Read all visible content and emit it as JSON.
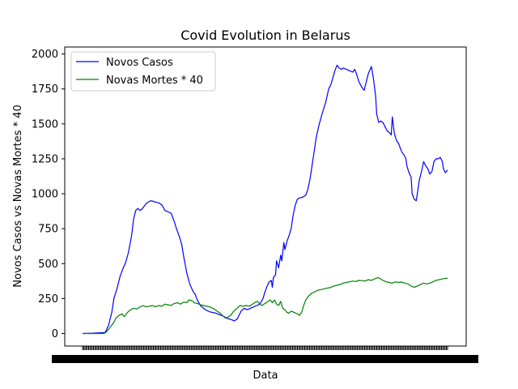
{
  "chart_data": {
    "type": "line",
    "title": "Covid Evolution in Belarus",
    "xlabel": "Data",
    "ylabel": "Novos Casos vs Novas Mortes * 40",
    "ylim": [
      -90,
      2050
    ],
    "yticks": [
      0,
      250,
      500,
      750,
      1000,
      1250,
      1500,
      1750,
      2000
    ],
    "x_tick_count": 300,
    "grid": false,
    "legend_position": "top-left",
    "series": [
      {
        "name": "Novos Casos",
        "color": "#0000ff",
        "points": [
          [
            0,
            0
          ],
          [
            10,
            2
          ],
          [
            17,
            5
          ],
          [
            20,
            5
          ],
          [
            22,
            10
          ],
          [
            25,
            60
          ],
          [
            28,
            150
          ],
          [
            30,
            250
          ],
          [
            33,
            320
          ],
          [
            36,
            410
          ],
          [
            39,
            470
          ],
          [
            41,
            500
          ],
          [
            44,
            580
          ],
          [
            47,
            700
          ],
          [
            49,
            820
          ],
          [
            51,
            880
          ],
          [
            53,
            895
          ],
          [
            55,
            880
          ],
          [
            57,
            890
          ],
          [
            59,
            910
          ],
          [
            61,
            930
          ],
          [
            64,
            945
          ],
          [
            66,
            950
          ],
          [
            68,
            945
          ],
          [
            70,
            940
          ],
          [
            73,
            935
          ],
          [
            76,
            920
          ],
          [
            79,
            880
          ],
          [
            82,
            870
          ],
          [
            85,
            860
          ],
          [
            88,
            800
          ],
          [
            90,
            750
          ],
          [
            93,
            690
          ],
          [
            95,
            640
          ],
          [
            97,
            550
          ],
          [
            100,
            430
          ],
          [
            103,
            350
          ],
          [
            106,
            300
          ],
          [
            108,
            280
          ],
          [
            110,
            240
          ],
          [
            113,
            200
          ],
          [
            116,
            180
          ],
          [
            119,
            165
          ],
          [
            122,
            155
          ],
          [
            125,
            150
          ],
          [
            128,
            145
          ],
          [
            131,
            135
          ],
          [
            133,
            130
          ],
          [
            136,
            120
          ],
          [
            138,
            110
          ],
          [
            140,
            105
          ],
          [
            142,
            100
          ],
          [
            144,
            95
          ],
          [
            145,
            90
          ],
          [
            148,
            100
          ],
          [
            150,
            130
          ],
          [
            152,
            160
          ],
          [
            155,
            180
          ],
          [
            158,
            170
          ],
          [
            161,
            180
          ],
          [
            164,
            190
          ],
          [
            167,
            200
          ],
          [
            170,
            210
          ],
          [
            173,
            250
          ],
          [
            175,
            300
          ],
          [
            177,
            340
          ],
          [
            179,
            370
          ],
          [
            181,
            380
          ],
          [
            182,
            330
          ],
          [
            183,
            400
          ],
          [
            185,
            420
          ],
          [
            186,
            520
          ],
          [
            188,
            470
          ],
          [
            190,
            560
          ],
          [
            191,
            520
          ],
          [
            193,
            650
          ],
          [
            194,
            600
          ],
          [
            196,
            660
          ],
          [
            198,
            700
          ],
          [
            200,
            750
          ],
          [
            202,
            850
          ],
          [
            204,
            920
          ],
          [
            206,
            960
          ],
          [
            208,
            970
          ],
          [
            211,
            975
          ],
          [
            214,
            990
          ],
          [
            216,
            1030
          ],
          [
            218,
            1100
          ],
          [
            220,
            1200
          ],
          [
            222,
            1300
          ],
          [
            224,
            1400
          ],
          [
            227,
            1500
          ],
          [
            230,
            1580
          ],
          [
            233,
            1650
          ],
          [
            236,
            1750
          ],
          [
            238,
            1780
          ],
          [
            240,
            1830
          ],
          [
            242,
            1880
          ],
          [
            244,
            1920
          ],
          [
            246,
            1900
          ],
          [
            248,
            1890
          ],
          [
            250,
            1900
          ],
          [
            253,
            1890
          ],
          [
            256,
            1880
          ],
          [
            259,
            1870
          ],
          [
            261,
            1890
          ],
          [
            263,
            1850
          ],
          [
            265,
            1800
          ],
          [
            268,
            1760
          ],
          [
            270,
            1740
          ],
          [
            272,
            1800
          ],
          [
            274,
            1860
          ],
          [
            277,
            1910
          ],
          [
            279,
            1820
          ],
          [
            281,
            1700
          ],
          [
            282,
            1570
          ],
          [
            284,
            1510
          ],
          [
            286,
            1520
          ],
          [
            288,
            1510
          ],
          [
            290,
            1480
          ],
          [
            292,
            1450
          ],
          [
            294,
            1440
          ],
          [
            296,
            1420
          ],
          [
            297,
            1550
          ],
          [
            299,
            1430
          ],
          [
            301,
            1380
          ],
          [
            303,
            1360
          ],
          [
            306,
            1300
          ],
          [
            308,
            1280
          ],
          [
            310,
            1250
          ],
          [
            311,
            1200
          ],
          [
            313,
            1150
          ],
          [
            315,
            1120
          ],
          [
            316,
            1000
          ],
          [
            318,
            960
          ],
          [
            320,
            950
          ],
          [
            321,
            1000
          ],
          [
            323,
            1100
          ],
          [
            325,
            1160
          ],
          [
            327,
            1230
          ],
          [
            329,
            1200
          ],
          [
            331,
            1180
          ],
          [
            333,
            1140
          ],
          [
            335,
            1160
          ],
          [
            337,
            1230
          ],
          [
            339,
            1250
          ],
          [
            341,
            1250
          ],
          [
            343,
            1260
          ],
          [
            345,
            1230
          ],
          [
            346,
            1180
          ],
          [
            348,
            1150
          ],
          [
            350,
            1170
          ]
        ]
      },
      {
        "name": "Novas Mortes * 40",
        "color": "#008000",
        "points": [
          [
            0,
            0
          ],
          [
            10,
            0
          ],
          [
            20,
            0
          ],
          [
            22,
            5
          ],
          [
            25,
            30
          ],
          [
            28,
            60
          ],
          [
            30,
            80
          ],
          [
            32,
            110
          ],
          [
            35,
            130
          ],
          [
            38,
            140
          ],
          [
            40,
            120
          ],
          [
            43,
            150
          ],
          [
            46,
            170
          ],
          [
            49,
            180
          ],
          [
            52,
            175
          ],
          [
            55,
            190
          ],
          [
            58,
            200
          ],
          [
            61,
            190
          ],
          [
            64,
            195
          ],
          [
            67,
            200
          ],
          [
            70,
            190
          ],
          [
            73,
            200
          ],
          [
            76,
            195
          ],
          [
            79,
            210
          ],
          [
            82,
            205
          ],
          [
            85,
            200
          ],
          [
            88,
            215
          ],
          [
            91,
            220
          ],
          [
            94,
            210
          ],
          [
            97,
            225
          ],
          [
            100,
            220
          ],
          [
            102,
            240
          ],
          [
            105,
            235
          ],
          [
            107,
            220
          ],
          [
            110,
            215
          ],
          [
            113,
            205
          ],
          [
            116,
            200
          ],
          [
            119,
            195
          ],
          [
            122,
            190
          ],
          [
            125,
            180
          ],
          [
            128,
            165
          ],
          [
            131,
            150
          ],
          [
            134,
            130
          ],
          [
            137,
            110
          ],
          [
            140,
            120
          ],
          [
            142,
            130
          ],
          [
            145,
            160
          ],
          [
            148,
            180
          ],
          [
            151,
            200
          ],
          [
            154,
            195
          ],
          [
            157,
            200
          ],
          [
            160,
            195
          ],
          [
            163,
            210
          ],
          [
            166,
            225
          ],
          [
            168,
            230
          ],
          [
            170,
            210
          ],
          [
            172,
            200
          ],
          [
            174,
            210
          ],
          [
            176,
            220
          ],
          [
            178,
            230
          ],
          [
            180,
            240
          ],
          [
            182,
            220
          ],
          [
            184,
            240
          ],
          [
            186,
            210
          ],
          [
            188,
            200
          ],
          [
            190,
            230
          ],
          [
            192,
            180
          ],
          [
            194,
            170
          ],
          [
            196,
            150
          ],
          [
            198,
            145
          ],
          [
            200,
            160
          ],
          [
            203,
            150
          ],
          [
            206,
            140
          ],
          [
            208,
            130
          ],
          [
            210,
            150
          ],
          [
            212,
            200
          ],
          [
            214,
            240
          ],
          [
            217,
            270
          ],
          [
            220,
            290
          ],
          [
            223,
            300
          ],
          [
            226,
            310
          ],
          [
            229,
            315
          ],
          [
            232,
            320
          ],
          [
            235,
            325
          ],
          [
            238,
            330
          ],
          [
            241,
            340
          ],
          [
            244,
            345
          ],
          [
            247,
            350
          ],
          [
            250,
            360
          ],
          [
            253,
            365
          ],
          [
            256,
            370
          ],
          [
            259,
            375
          ],
          [
            262,
            372
          ],
          [
            265,
            380
          ],
          [
            268,
            378
          ],
          [
            271,
            375
          ],
          [
            274,
            385
          ],
          [
            277,
            380
          ],
          [
            280,
            390
          ],
          [
            283,
            400
          ],
          [
            285,
            395
          ],
          [
            288,
            380
          ],
          [
            291,
            370
          ],
          [
            294,
            365
          ],
          [
            297,
            360
          ],
          [
            300,
            370
          ],
          [
            303,
            365
          ],
          [
            306,
            368
          ],
          [
            309,
            360
          ],
          [
            312,
            355
          ],
          [
            315,
            340
          ],
          [
            318,
            330
          ],
          [
            321,
            340
          ],
          [
            324,
            350
          ],
          [
            327,
            360
          ],
          [
            330,
            355
          ],
          [
            333,
            360
          ],
          [
            336,
            370
          ],
          [
            339,
            380
          ],
          [
            342,
            385
          ],
          [
            345,
            390
          ],
          [
            348,
            395
          ],
          [
            350,
            395
          ]
        ]
      }
    ]
  }
}
